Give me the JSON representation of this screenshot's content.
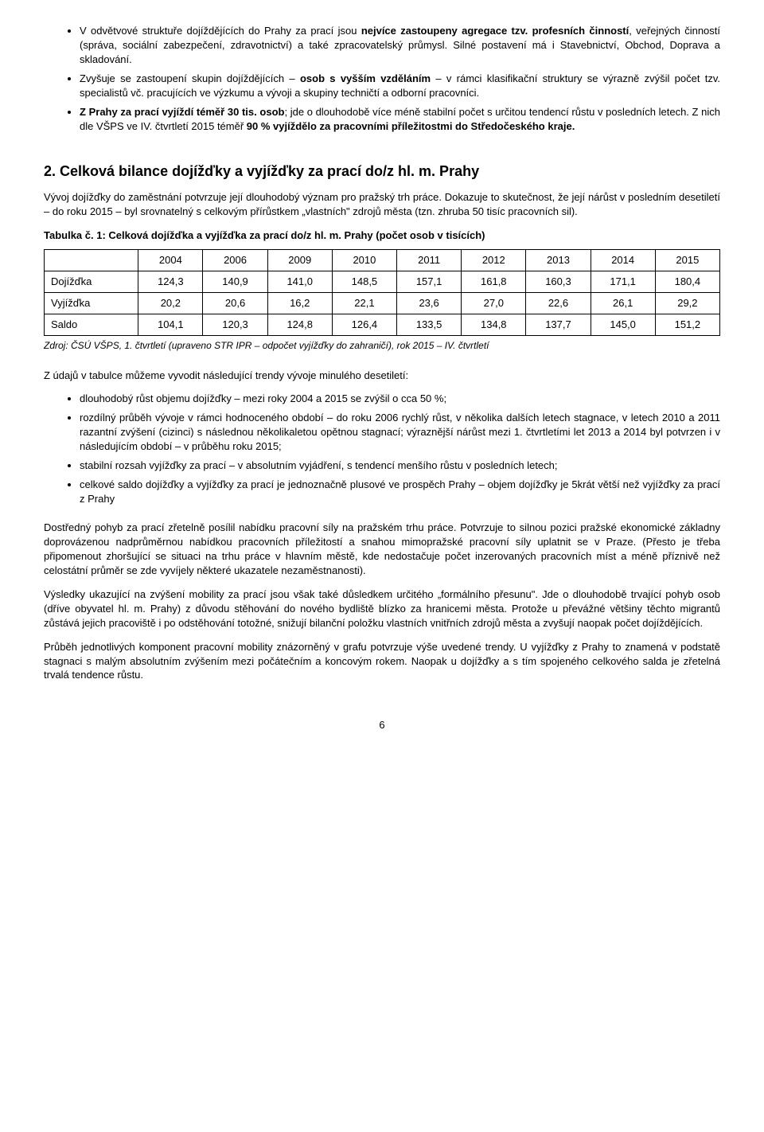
{
  "bullets_top": [
    {
      "pre": "V odvětvové struktuře dojíždějících do Prahy za prací jsou ",
      "b1": "nejvíce zastoupeny agregace tzv. profesních činností",
      "post": ", veřejných činností (správa, sociální zabezpečení, zdravotnictví) a také zpracovatelský průmysl. Silné postavení má i Stavebnictví, Obchod, Doprava a skladování."
    },
    {
      "pre": "Zvyšuje se zastoupení skupin dojíždějících – ",
      "b1": "osob s vyšším vzděláním",
      "post": " – v rámci klasifikační struktury se výrazně zvýšil počet tzv. specialistů vč. pracujících ve výzkumu a vývoji a skupiny techničtí a odborní pracovníci."
    },
    {
      "b1": "Z Prahy za prací vyjíždí téměř 30 tis. osob",
      "pre": "",
      "post1": "; jde o dlouhodobě více méně stabilní počet s určitou tendencí růstu v posledních letech. Z nich dle VŠPS ve IV. čtvrtletí 2015 téměř ",
      "b2": "90 % vyjíždělo za pracovními příležitostmi do Středočeského kraje.",
      "post2": ""
    }
  ],
  "section_title": "2.   Celková bilance dojížďky a vyjížďky za prací do/z hl. m. Prahy",
  "intro_para": "Vývoj dojížďky do zaměstnání potvrzuje její dlouhodobý význam pro pražský trh práce. Dokazuje to skutečnost, že její nárůst v posledním desetiletí – do roku 2015 – byl srovnatelný s celkovým přírůstkem „vlastních\" zdrojů města (tzn. zhruba 50 tisíc pracovních sil).",
  "table_title": "Tabulka č. 1: Celková dojížďka a vyjížďka za prací do/z hl. m. Prahy (počet osob v tisících)",
  "table": {
    "years": [
      "2004",
      "2006",
      "2009",
      "2010",
      "2011",
      "2012",
      "2013",
      "2014",
      "2015"
    ],
    "rows": [
      {
        "label": "Dojížďka",
        "vals": [
          "124,3",
          "140,9",
          "141,0",
          "148,5",
          "157,1",
          "161,8",
          "160,3",
          "171,1",
          "180,4"
        ]
      },
      {
        "label": "Vyjížďka",
        "vals": [
          "20,2",
          "20,6",
          "16,2",
          "22,1",
          "23,6",
          "27,0",
          "22,6",
          "26,1",
          "29,2"
        ]
      },
      {
        "label": "Saldo",
        "vals": [
          "104,1",
          "120,3",
          "124,8",
          "126,4",
          "133,5",
          "134,8",
          "137,7",
          "145,0",
          "151,2"
        ]
      }
    ]
  },
  "table_source": "Zdroj: ČSÚ VŠPS, 1. čtvrtletí (upraveno STR IPR – odpočet vyjížďky do zahraničí), rok 2015 – IV. čtvrtletí",
  "after_table_intro": "Z údajů v tabulce můžeme vyvodit následující trendy vývoje minulého desetiletí:",
  "bullets_mid": [
    "dlouhodobý růst objemu dojížďky – mezi roky 2004 a 2015 se zvýšil o cca 50 %;",
    "rozdílný průběh vývoje v rámci hodnoceného období – do roku 2006 rychlý růst, v několika dalších letech stagnace, v letech 2010 a 2011 razantní zvýšení (cizinci) s následnou několikaletou opětnou stagnací; výraznější nárůst mezi 1. čtvrtletími let 2013 a 2014 byl potvrzen i v následujícím období – v průběhu roku 2015;",
    "stabilní rozsah vyjížďky za prací – v absolutním vyjádření, s tendencí menšího růstu v posledních letech;",
    "celkové saldo dojížďky a vyjížďky za prací je jednoznačně plusové ve prospěch Prahy – objem dojížďky je 5krát větší než vyjížďky za prací z Prahy"
  ],
  "para_after1": "Dostředný pohyb za prací zřetelně posílil nabídku pracovní síly na pražském trhu práce. Potvrzuje to silnou pozici pražské ekonomické základny doprovázenou nadprůměrnou nabídkou pracovních příležitostí a snahou mimopražské pracovní síly uplatnit se v Praze. (Přesto je třeba připomenout zhoršující se situaci na trhu práce v hlavním městě, kde nedostačuje počet inzerovaných pracovních míst a méně příznivě než celostátní průměr se zde vyvíjely některé ukazatele nezaměstnanosti).",
  "para_after2": "Výsledky ukazující na zvýšení mobility za prací jsou však také důsledkem určitého „formálního přesunu\". Jde o dlouhodobě trvající pohyb osob (dříve obyvatel hl. m. Prahy) z důvodu stěhování do nového bydliště blízko za hranicemi města. Protože u převážné většiny těchto migrantů zůstává jejich pracoviště i po odstěhování totožné, snižují bilanční položku vlastních vnitřních zdrojů města a zvyšují naopak počet dojíždějících.",
  "para_after3": "Průběh jednotlivých komponent pracovní mobility znázorněný v grafu potvrzuje výše uvedené trendy. U vyjížďky z Prahy to znamená v podstatě stagnaci s malým absolutním zvýšením mezi počátečním a koncovým rokem. Naopak u dojížďky a s tím spojeného celkového salda je zřetelná trvalá tendence růstu.",
  "page_number": "6"
}
